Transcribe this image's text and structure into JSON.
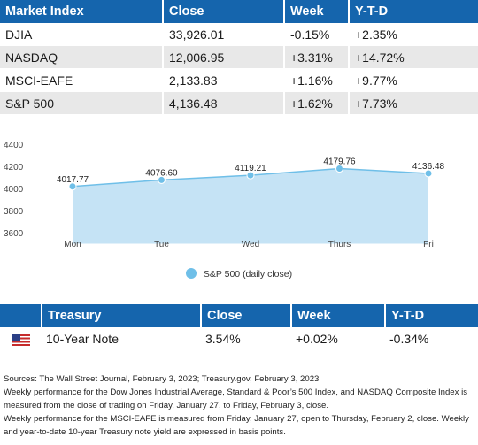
{
  "market_table": {
    "headers": [
      "Market Index",
      "Close",
      "Week",
      "Y-T-D"
    ],
    "rows": [
      [
        "DJIA",
        "33,926.01",
        "-0.15%",
        "+2.35%"
      ],
      [
        "NASDAQ",
        "12,006.95",
        "+3.31%",
        "+14.72%"
      ],
      [
        "MSCI-EAFE",
        "2,133.83",
        "+1.16%",
        "+9.77%"
      ],
      [
        "S&P 500",
        "4,136.48",
        "+1.62%",
        "+7.73%"
      ]
    ]
  },
  "chart_data": {
    "type": "area",
    "categories": [
      "Mon",
      "Tue",
      "Wed",
      "Thurs",
      "Fri"
    ],
    "series": [
      {
        "name": "S&P 500 (daily close)",
        "values": [
          4017.77,
          4076.6,
          4119.21,
          4179.76,
          4136.48
        ],
        "color": "#6fbfe8"
      }
    ],
    "data_labels": [
      "4017.77",
      "4076.60",
      "4119.21",
      "4179.76",
      "4136.48"
    ],
    "y_ticks": [
      "3600",
      "3800",
      "4000",
      "4200",
      "4400"
    ],
    "ylim": [
      3600,
      4400
    ],
    "baseline": 3500,
    "legend_position": "bottom",
    "title": "",
    "xlabel": "",
    "ylabel": ""
  },
  "legend": {
    "label": "S&P 500 (daily close)"
  },
  "treasury_table": {
    "headers": [
      "Treasury",
      "Close",
      "Week",
      "Y-T-D"
    ],
    "row": {
      "flag_icon": "us-flag-icon",
      "name": "10-Year Note",
      "close": "3.54%",
      "week": "+0.02%",
      "ytd": "-0.34%"
    }
  },
  "notes": [
    "Sources: The Wall Street Journal, February 3, 2023; Treasury.gov, February 3, 2023",
    "Weekly performance for the Dow Jones Industrial Average, Standard & Poor’s 500 Index, and NASDAQ Composite Index is measured from the close of trading on Friday, January 27, to Friday, February 3, close.",
    "Weekly performance for the MSCI-EAFE is measured from Friday, January 27, open to Thursday, February 2, close. Weekly and year-to-date 10-year Treasury note yield are expressed in basis points."
  ],
  "colors": {
    "header_bg": "#1565ad",
    "row_alt_bg": "#e8e8e8",
    "area_fill": "#c5e3f5",
    "line": "#6fbfe8"
  }
}
